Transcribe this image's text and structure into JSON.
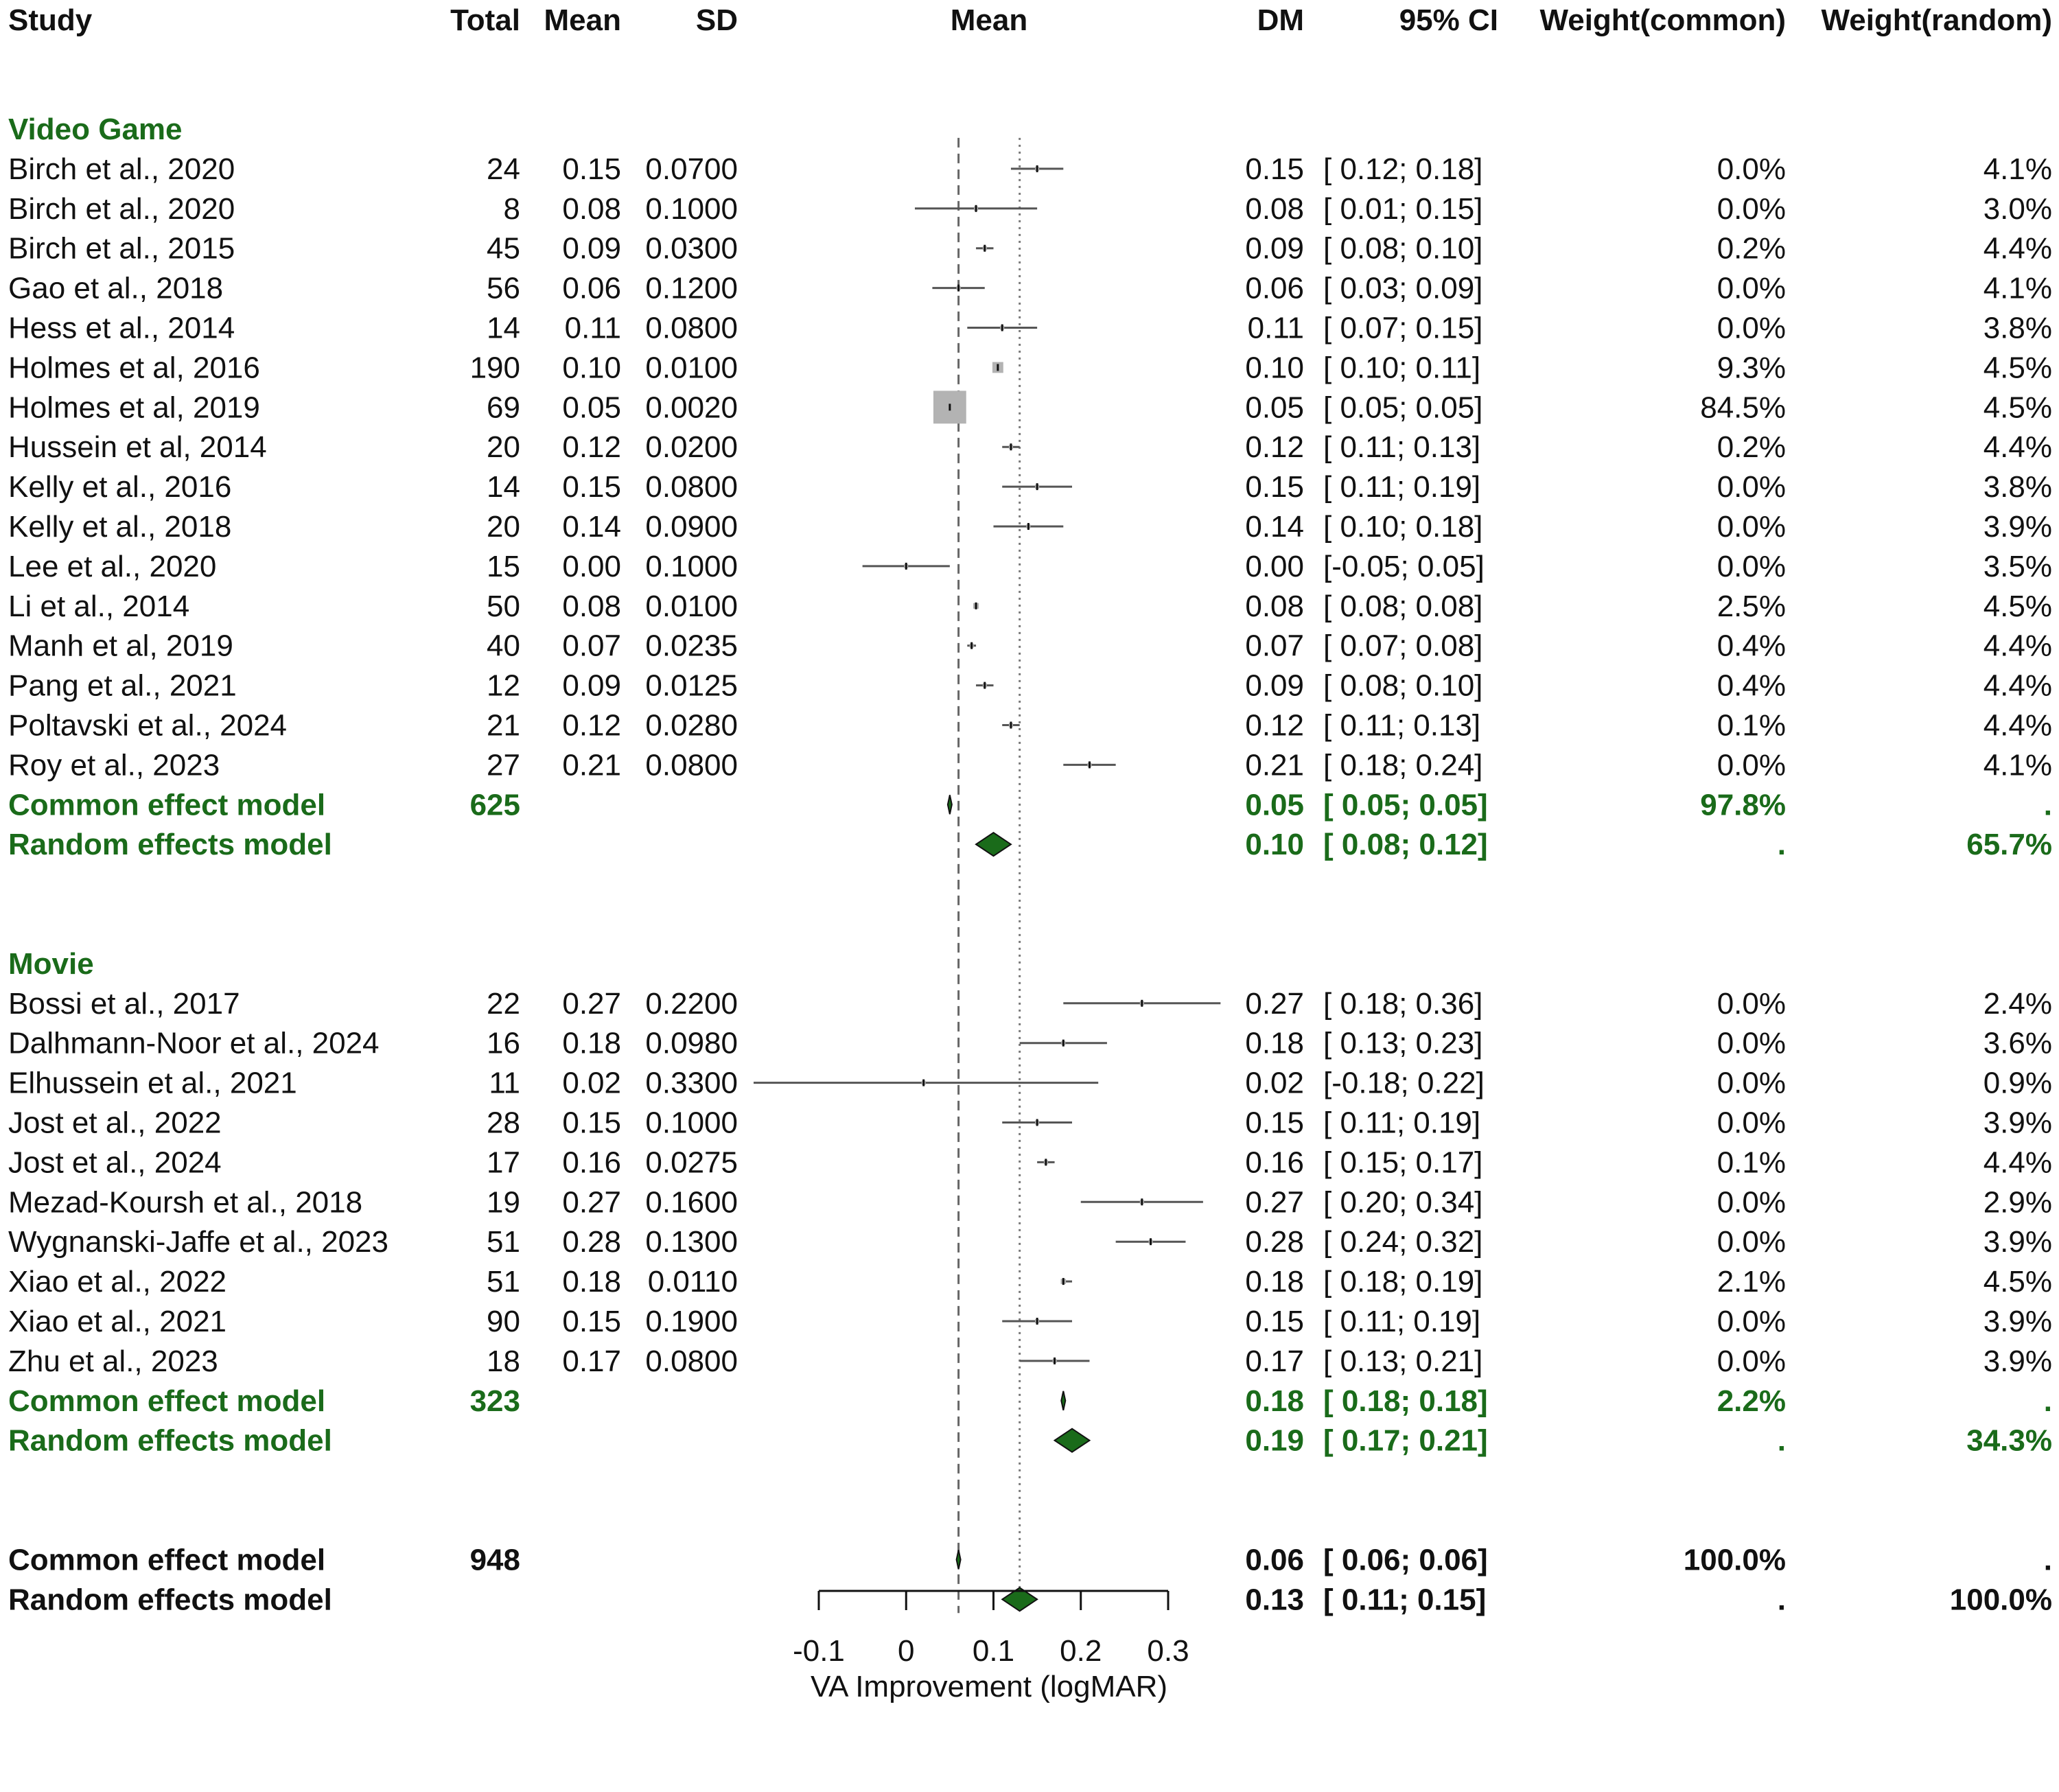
{
  "headers": {
    "study": "Study",
    "total": "Total",
    "mean": "Mean",
    "sd": "SD",
    "plot": "Mean",
    "dm": "DM",
    "ci": "95% CI",
    "w_common": "Weight(common)",
    "w_random": "Weight(random)"
  },
  "colors": {
    "text": "#111111",
    "group": "#1a6b1a",
    "diamond": "#1a6b1a",
    "box": "#b3b3b3",
    "line": "#555555"
  },
  "chart_data": {
    "type": "forest",
    "xlabel": "VA Improvement (logMAR)",
    "xlim": [
      -0.1,
      0.3
    ],
    "ticks": [
      -0.1,
      0,
      0.1,
      0.2,
      0.3
    ],
    "tick_labels": [
      "-0.1",
      "0",
      "0.1",
      "0.2",
      "0.3"
    ],
    "ref_line_common": 0.06,
    "ref_line_random": 0.13,
    "groups": [
      {
        "label": "Video Game",
        "studies": [
          {
            "study": "Birch et al., 2020",
            "total": "24",
            "mean": "0.15",
            "sd": "0.0700",
            "dm": "0.15",
            "ci_text": "[ 0.12; 0.18]",
            "lo": 0.12,
            "hi": 0.18,
            "est": 0.15,
            "w_common": "0.0%",
            "w_random": "4.1%",
            "wc": 0.0
          },
          {
            "study": "Birch et al., 2020",
            "total": "8",
            "mean": "0.08",
            "sd": "0.1000",
            "dm": "0.08",
            "ci_text": "[ 0.01; 0.15]",
            "lo": 0.01,
            "hi": 0.15,
            "est": 0.08,
            "w_common": "0.0%",
            "w_random": "3.0%",
            "wc": 0.0
          },
          {
            "study": "Birch et al., 2015",
            "total": "45",
            "mean": "0.09",
            "sd": "0.0300",
            "dm": "0.09",
            "ci_text": "[ 0.08; 0.10]",
            "lo": 0.08,
            "hi": 0.1,
            "est": 0.09,
            "w_common": "0.2%",
            "w_random": "4.4%",
            "wc": 0.2
          },
          {
            "study": "Gao et al., 2018",
            "total": "56",
            "mean": "0.06",
            "sd": "0.1200",
            "dm": "0.06",
            "ci_text": "[ 0.03; 0.09]",
            "lo": 0.03,
            "hi": 0.09,
            "est": 0.06,
            "w_common": "0.0%",
            "w_random": "4.1%",
            "wc": 0.0
          },
          {
            "study": "Hess et al., 2014",
            "total": "14",
            "mean": "0.11",
            "sd": "0.0800",
            "dm": "0.11",
            "ci_text": "[ 0.07; 0.15]",
            "lo": 0.07,
            "hi": 0.15,
            "est": 0.11,
            "w_common": "0.0%",
            "w_random": "3.8%",
            "wc": 0.0
          },
          {
            "study": "Holmes et al, 2016",
            "total": "190",
            "mean": "0.10",
            "sd": "0.0100",
            "dm": "0.10",
            "ci_text": "[ 0.10; 0.11]",
            "lo": 0.1,
            "hi": 0.11,
            "est": 0.105,
            "w_common": "9.3%",
            "w_random": "4.5%",
            "wc": 9.3
          },
          {
            "study": "Holmes et al, 2019",
            "total": "69",
            "mean": "0.05",
            "sd": "0.0020",
            "dm": "0.05",
            "ci_text": "[ 0.05; 0.05]",
            "lo": 0.05,
            "hi": 0.05,
            "est": 0.05,
            "w_common": "84.5%",
            "w_random": "4.5%",
            "wc": 84.5
          },
          {
            "study": "Hussein et al, 2014",
            "total": "20",
            "mean": "0.12",
            "sd": "0.0200",
            "dm": "0.12",
            "ci_text": "[ 0.11; 0.13]",
            "lo": 0.11,
            "hi": 0.13,
            "est": 0.12,
            "w_common": "0.2%",
            "w_random": "4.4%",
            "wc": 0.2
          },
          {
            "study": "Kelly et al., 2016",
            "total": "14",
            "mean": "0.15",
            "sd": "0.0800",
            "dm": "0.15",
            "ci_text": "[ 0.11; 0.19]",
            "lo": 0.11,
            "hi": 0.19,
            "est": 0.15,
            "w_common": "0.0%",
            "w_random": "3.8%",
            "wc": 0.0
          },
          {
            "study": "Kelly et al., 2018",
            "total": "20",
            "mean": "0.14",
            "sd": "0.0900",
            "dm": "0.14",
            "ci_text": "[ 0.10; 0.18]",
            "lo": 0.1,
            "hi": 0.18,
            "est": 0.14,
            "w_common": "0.0%",
            "w_random": "3.9%",
            "wc": 0.0
          },
          {
            "study": "Lee et al., 2020",
            "total": "15",
            "mean": "0.00",
            "sd": "0.1000",
            "dm": "0.00",
            "ci_text": "[-0.05; 0.05]",
            "lo": -0.05,
            "hi": 0.05,
            "est": 0.0,
            "w_common": "0.0%",
            "w_random": "3.5%",
            "wc": 0.0
          },
          {
            "study": "Li et al., 2014",
            "total": "50",
            "mean": "0.08",
            "sd": "0.0100",
            "dm": "0.08",
            "ci_text": "[ 0.08; 0.08]",
            "lo": 0.08,
            "hi": 0.08,
            "est": 0.08,
            "w_common": "2.5%",
            "w_random": "4.5%",
            "wc": 2.5
          },
          {
            "study": "Manh et al, 2019",
            "total": "40",
            "mean": "0.07",
            "sd": "0.0235",
            "dm": "0.07",
            "ci_text": "[ 0.07; 0.08]",
            "lo": 0.07,
            "hi": 0.08,
            "est": 0.075,
            "w_common": "0.4%",
            "w_random": "4.4%",
            "wc": 0.4
          },
          {
            "study": "Pang et al., 2021",
            "total": "12",
            "mean": "0.09",
            "sd": "0.0125",
            "dm": "0.09",
            "ci_text": "[ 0.08; 0.10]",
            "lo": 0.08,
            "hi": 0.1,
            "est": 0.09,
            "w_common": "0.4%",
            "w_random": "4.4%",
            "wc": 0.4
          },
          {
            "study": "Poltavski et al., 2024",
            "total": "21",
            "mean": "0.12",
            "sd": "0.0280",
            "dm": "0.12",
            "ci_text": "[ 0.11; 0.13]",
            "lo": 0.11,
            "hi": 0.13,
            "est": 0.12,
            "w_common": "0.1%",
            "w_random": "4.4%",
            "wc": 0.1
          },
          {
            "study": "Roy et al., 2023",
            "total": "27",
            "mean": "0.21",
            "sd": "0.0800",
            "dm": "0.21",
            "ci_text": "[ 0.18; 0.24]",
            "lo": 0.18,
            "hi": 0.24,
            "est": 0.21,
            "w_common": "0.0%",
            "w_random": "4.1%",
            "wc": 0.0
          }
        ],
        "common": {
          "label": "Common effect model",
          "total": "625",
          "dm": "0.05",
          "ci_text": "[ 0.05; 0.05]",
          "lo": 0.05,
          "hi": 0.05,
          "est": 0.05,
          "w_common": "97.8%",
          "w_random": "."
        },
        "random": {
          "label": "Random effects model",
          "dm": "0.10",
          "ci_text": "[ 0.08; 0.12]",
          "lo": 0.08,
          "hi": 0.12,
          "est": 0.1,
          "w_common": ".",
          "w_random": "65.7%"
        }
      },
      {
        "label": "Movie",
        "studies": [
          {
            "study": "Bossi et al., 2017",
            "total": "22",
            "mean": "0.27",
            "sd": "0.2200",
            "dm": "0.27",
            "ci_text": "[ 0.18; 0.36]",
            "lo": 0.18,
            "hi": 0.36,
            "est": 0.27,
            "w_common": "0.0%",
            "w_random": "2.4%",
            "wc": 0.0
          },
          {
            "study": "Dalhmann-Noor et al., 2024",
            "total": "16",
            "mean": "0.18",
            "sd": "0.0980",
            "dm": "0.18",
            "ci_text": "[ 0.13; 0.23]",
            "lo": 0.13,
            "hi": 0.23,
            "est": 0.18,
            "w_common": "0.0%",
            "w_random": "3.6%",
            "wc": 0.0
          },
          {
            "study": "Elhussein et al., 2021",
            "total": "11",
            "mean": "0.02",
            "sd": "0.3300",
            "dm": "0.02",
            "ci_text": "[-0.18; 0.22]",
            "lo": -0.18,
            "hi": 0.22,
            "est": 0.02,
            "w_common": "0.0%",
            "w_random": "0.9%",
            "wc": 0.0
          },
          {
            "study": "Jost et al., 2022",
            "total": "28",
            "mean": "0.15",
            "sd": "0.1000",
            "dm": "0.15",
            "ci_text": "[ 0.11; 0.19]",
            "lo": 0.11,
            "hi": 0.19,
            "est": 0.15,
            "w_common": "0.0%",
            "w_random": "3.9%",
            "wc": 0.0
          },
          {
            "study": "Jost et al., 2024",
            "total": "17",
            "mean": "0.16",
            "sd": "0.0275",
            "dm": "0.16",
            "ci_text": "[ 0.15; 0.17]",
            "lo": 0.15,
            "hi": 0.17,
            "est": 0.16,
            "w_common": "0.1%",
            "w_random": "4.4%",
            "wc": 0.1
          },
          {
            "study": "Mezad-Koursh et al., 2018",
            "total": "19",
            "mean": "0.27",
            "sd": "0.1600",
            "dm": "0.27",
            "ci_text": "[ 0.20; 0.34]",
            "lo": 0.2,
            "hi": 0.34,
            "est": 0.27,
            "w_common": "0.0%",
            "w_random": "2.9%",
            "wc": 0.0
          },
          {
            "study": "Wygnanski-Jaffe et al., 2023",
            "total": "51",
            "mean": "0.28",
            "sd": "0.1300",
            "dm": "0.28",
            "ci_text": "[ 0.24; 0.32]",
            "lo": 0.24,
            "hi": 0.32,
            "est": 0.28,
            "w_common": "0.0%",
            "w_random": "3.9%",
            "wc": 0.0
          },
          {
            "study": "Xiao et al., 2022",
            "total": "51",
            "mean": "0.18",
            "sd": "0.0110",
            "dm": "0.18",
            "ci_text": "[ 0.18; 0.19]",
            "lo": 0.18,
            "hi": 0.19,
            "est": 0.18,
            "w_common": "2.1%",
            "w_random": "4.5%",
            "wc": 2.1
          },
          {
            "study": "Xiao et al., 2021",
            "total": "90",
            "mean": "0.15",
            "sd": "0.1900",
            "dm": "0.15",
            "ci_text": "[ 0.11; 0.19]",
            "lo": 0.11,
            "hi": 0.19,
            "est": 0.15,
            "w_common": "0.0%",
            "w_random": "3.9%",
            "wc": 0.0
          },
          {
            "study": "Zhu et al., 2023",
            "total": "18",
            "mean": "0.17",
            "sd": "0.0800",
            "dm": "0.17",
            "ci_text": "[ 0.13; 0.21]",
            "lo": 0.13,
            "hi": 0.21,
            "est": 0.17,
            "w_common": "0.0%",
            "w_random": "3.9%",
            "wc": 0.0
          }
        ],
        "common": {
          "label": "Common effect model",
          "total": "323",
          "dm": "0.18",
          "ci_text": "[ 0.18; 0.18]",
          "lo": 0.18,
          "hi": 0.18,
          "est": 0.18,
          "w_common": "2.2%",
          "w_random": "."
        },
        "random": {
          "label": "Random effects model",
          "dm": "0.19",
          "ci_text": "[ 0.17; 0.21]",
          "lo": 0.17,
          "hi": 0.21,
          "est": 0.19,
          "w_common": ".",
          "w_random": "34.3%"
        }
      }
    ],
    "overall": {
      "common": {
        "label": "Common effect model",
        "total": "948",
        "dm": "0.06",
        "ci_text": "[ 0.06; 0.06]",
        "lo": 0.06,
        "hi": 0.06,
        "est": 0.06,
        "w_common": "100.0%",
        "w_random": "."
      },
      "random": {
        "label": "Random effects model",
        "dm": "0.13",
        "ci_text": "[ 0.11; 0.15]",
        "lo": 0.11,
        "hi": 0.15,
        "est": 0.13,
        "w_common": ".",
        "w_random": "100.0%"
      }
    }
  }
}
